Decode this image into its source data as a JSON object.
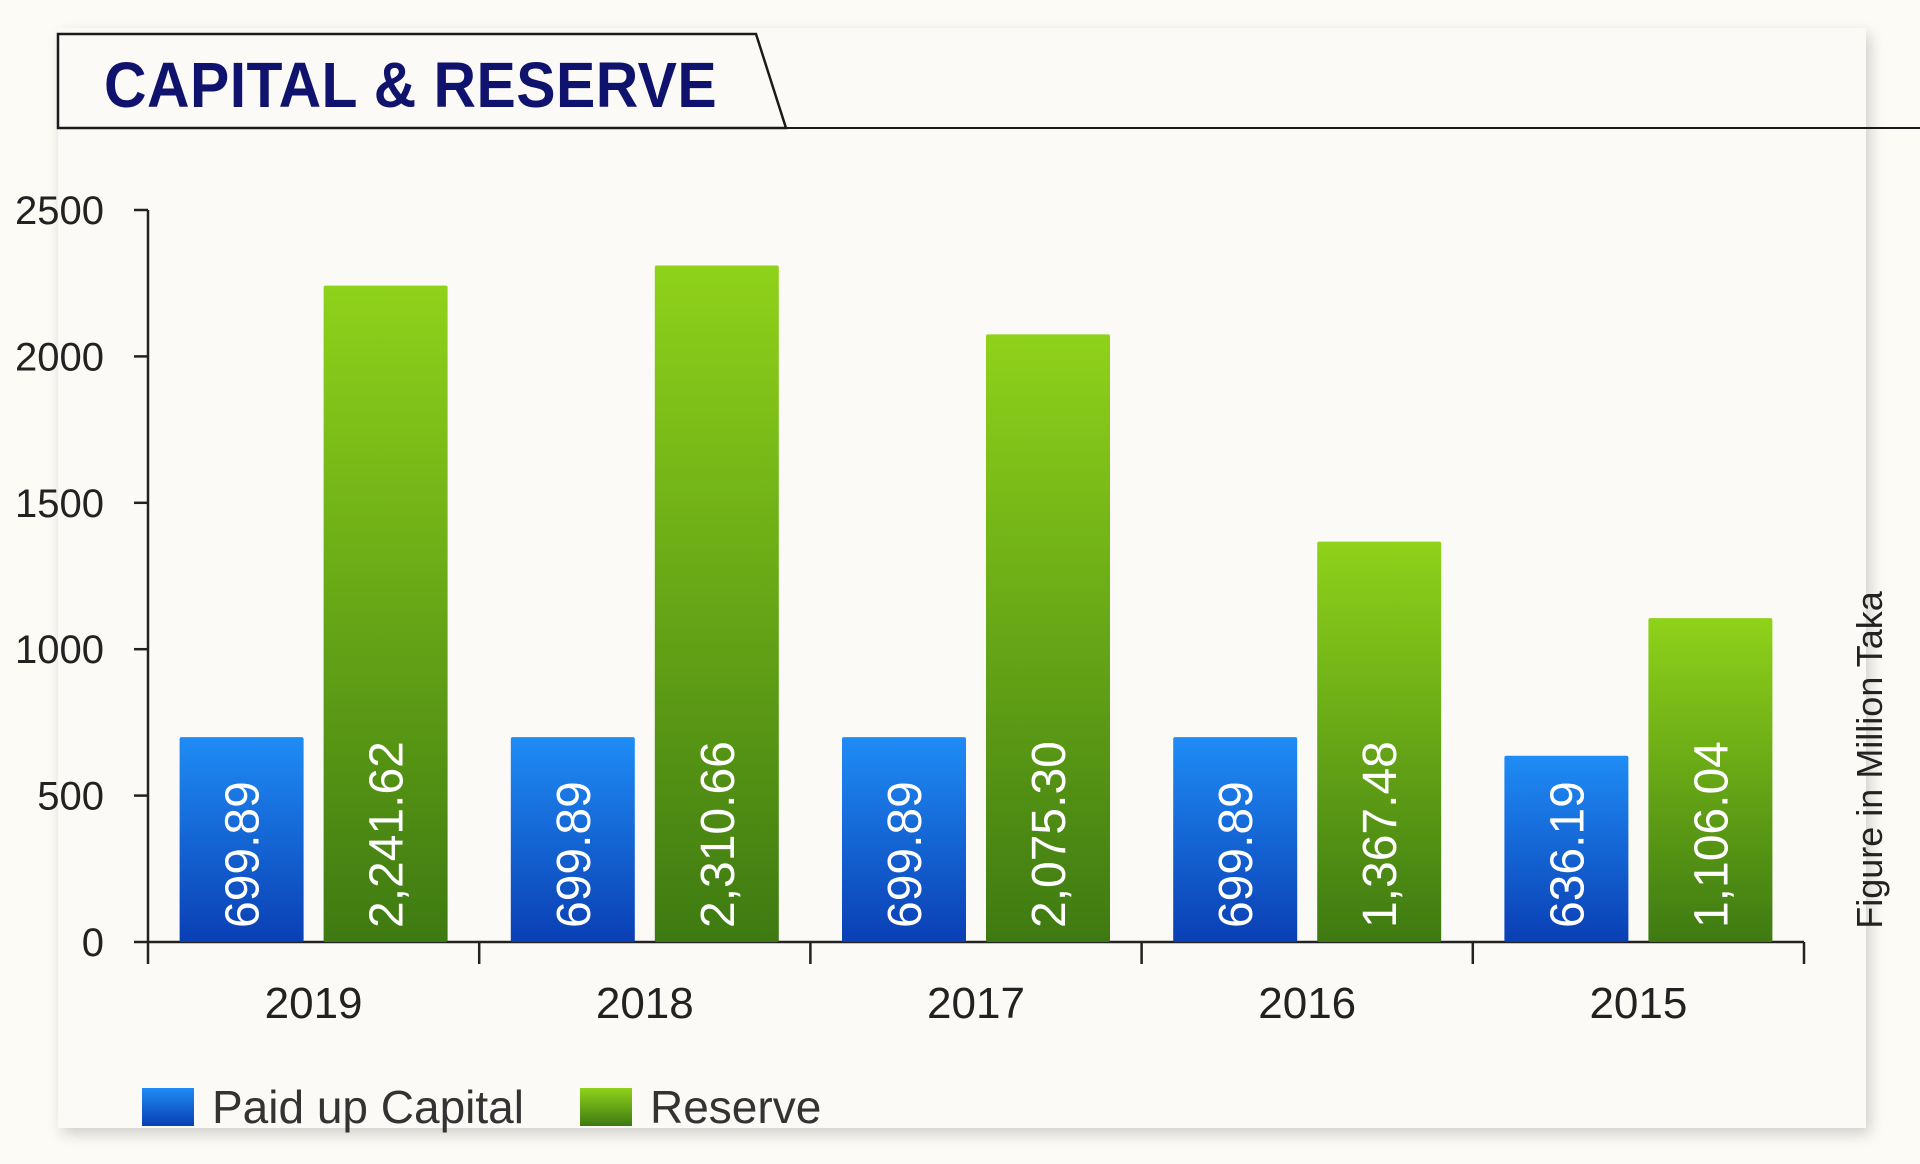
{
  "chart_data": {
    "type": "bar",
    "title": "CAPITAL & RESERVE",
    "categories": [
      "2019",
      "2018",
      "2017",
      "2016",
      "2015"
    ],
    "series": [
      {
        "name": "Paid up Capital",
        "values": [
          699.89,
          699.89,
          699.89,
          699.89,
          636.19
        ],
        "labels": [
          "699.89",
          "699.89",
          "699.89",
          "699.89",
          "636.19"
        ],
        "color_top": "#1f8cf5",
        "color_bottom": "#0a3fb4"
      },
      {
        "name": "Reserve",
        "values": [
          2241.62,
          2310.66,
          2075.3,
          1367.48,
          1106.04
        ],
        "labels": [
          "2,241.62",
          "2,310.66",
          "2,075.30",
          "1,367.48",
          "1,106.04"
        ],
        "color_top": "#8fd21a",
        "color_bottom": "#3e7a12"
      }
    ],
    "yticks": [
      "0",
      "500",
      "1000",
      "1500",
      "2000",
      "2500"
    ],
    "ylim": [
      0,
      2500
    ],
    "ylabel": "Figure in Million Taka",
    "xlabel": "",
    "grid": false,
    "legend_position": "bottom-left"
  },
  "colors": {
    "title": "#10136e",
    "axis": "#222222",
    "bar_label": "#ffffff"
  }
}
